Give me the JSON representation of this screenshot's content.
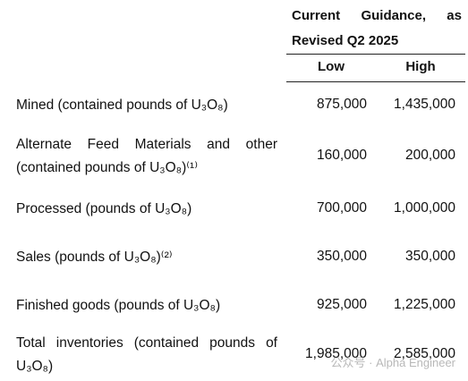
{
  "header": {
    "title": "Current Guidance, as Revised Q2 2025",
    "columns": [
      "Low",
      "High"
    ]
  },
  "table": {
    "rows": [
      [
        "Mined (contained pounds of U₃O₈)",
        "875,000",
        "1,435,000"
      ],
      [
        "Alternate Feed Materials and other (contained pounds of U₃O₈)⁽¹⁾",
        "160,000",
        "200,000"
      ],
      [
        "Processed (pounds of U₃O₈)",
        "700,000",
        "1,000,000"
      ],
      [
        "Sales (pounds of U₃O₈)⁽²⁾",
        "350,000",
        "350,000"
      ],
      [
        "Finished goods (pounds of U₃O₈)",
        "925,000",
        "1,225,000"
      ],
      [
        "Total inventories (contained pounds of U₃O₈)",
        "1,985,000",
        "2,585,000"
      ]
    ]
  },
  "watermark": "公众号 · Alpha Engineer"
}
